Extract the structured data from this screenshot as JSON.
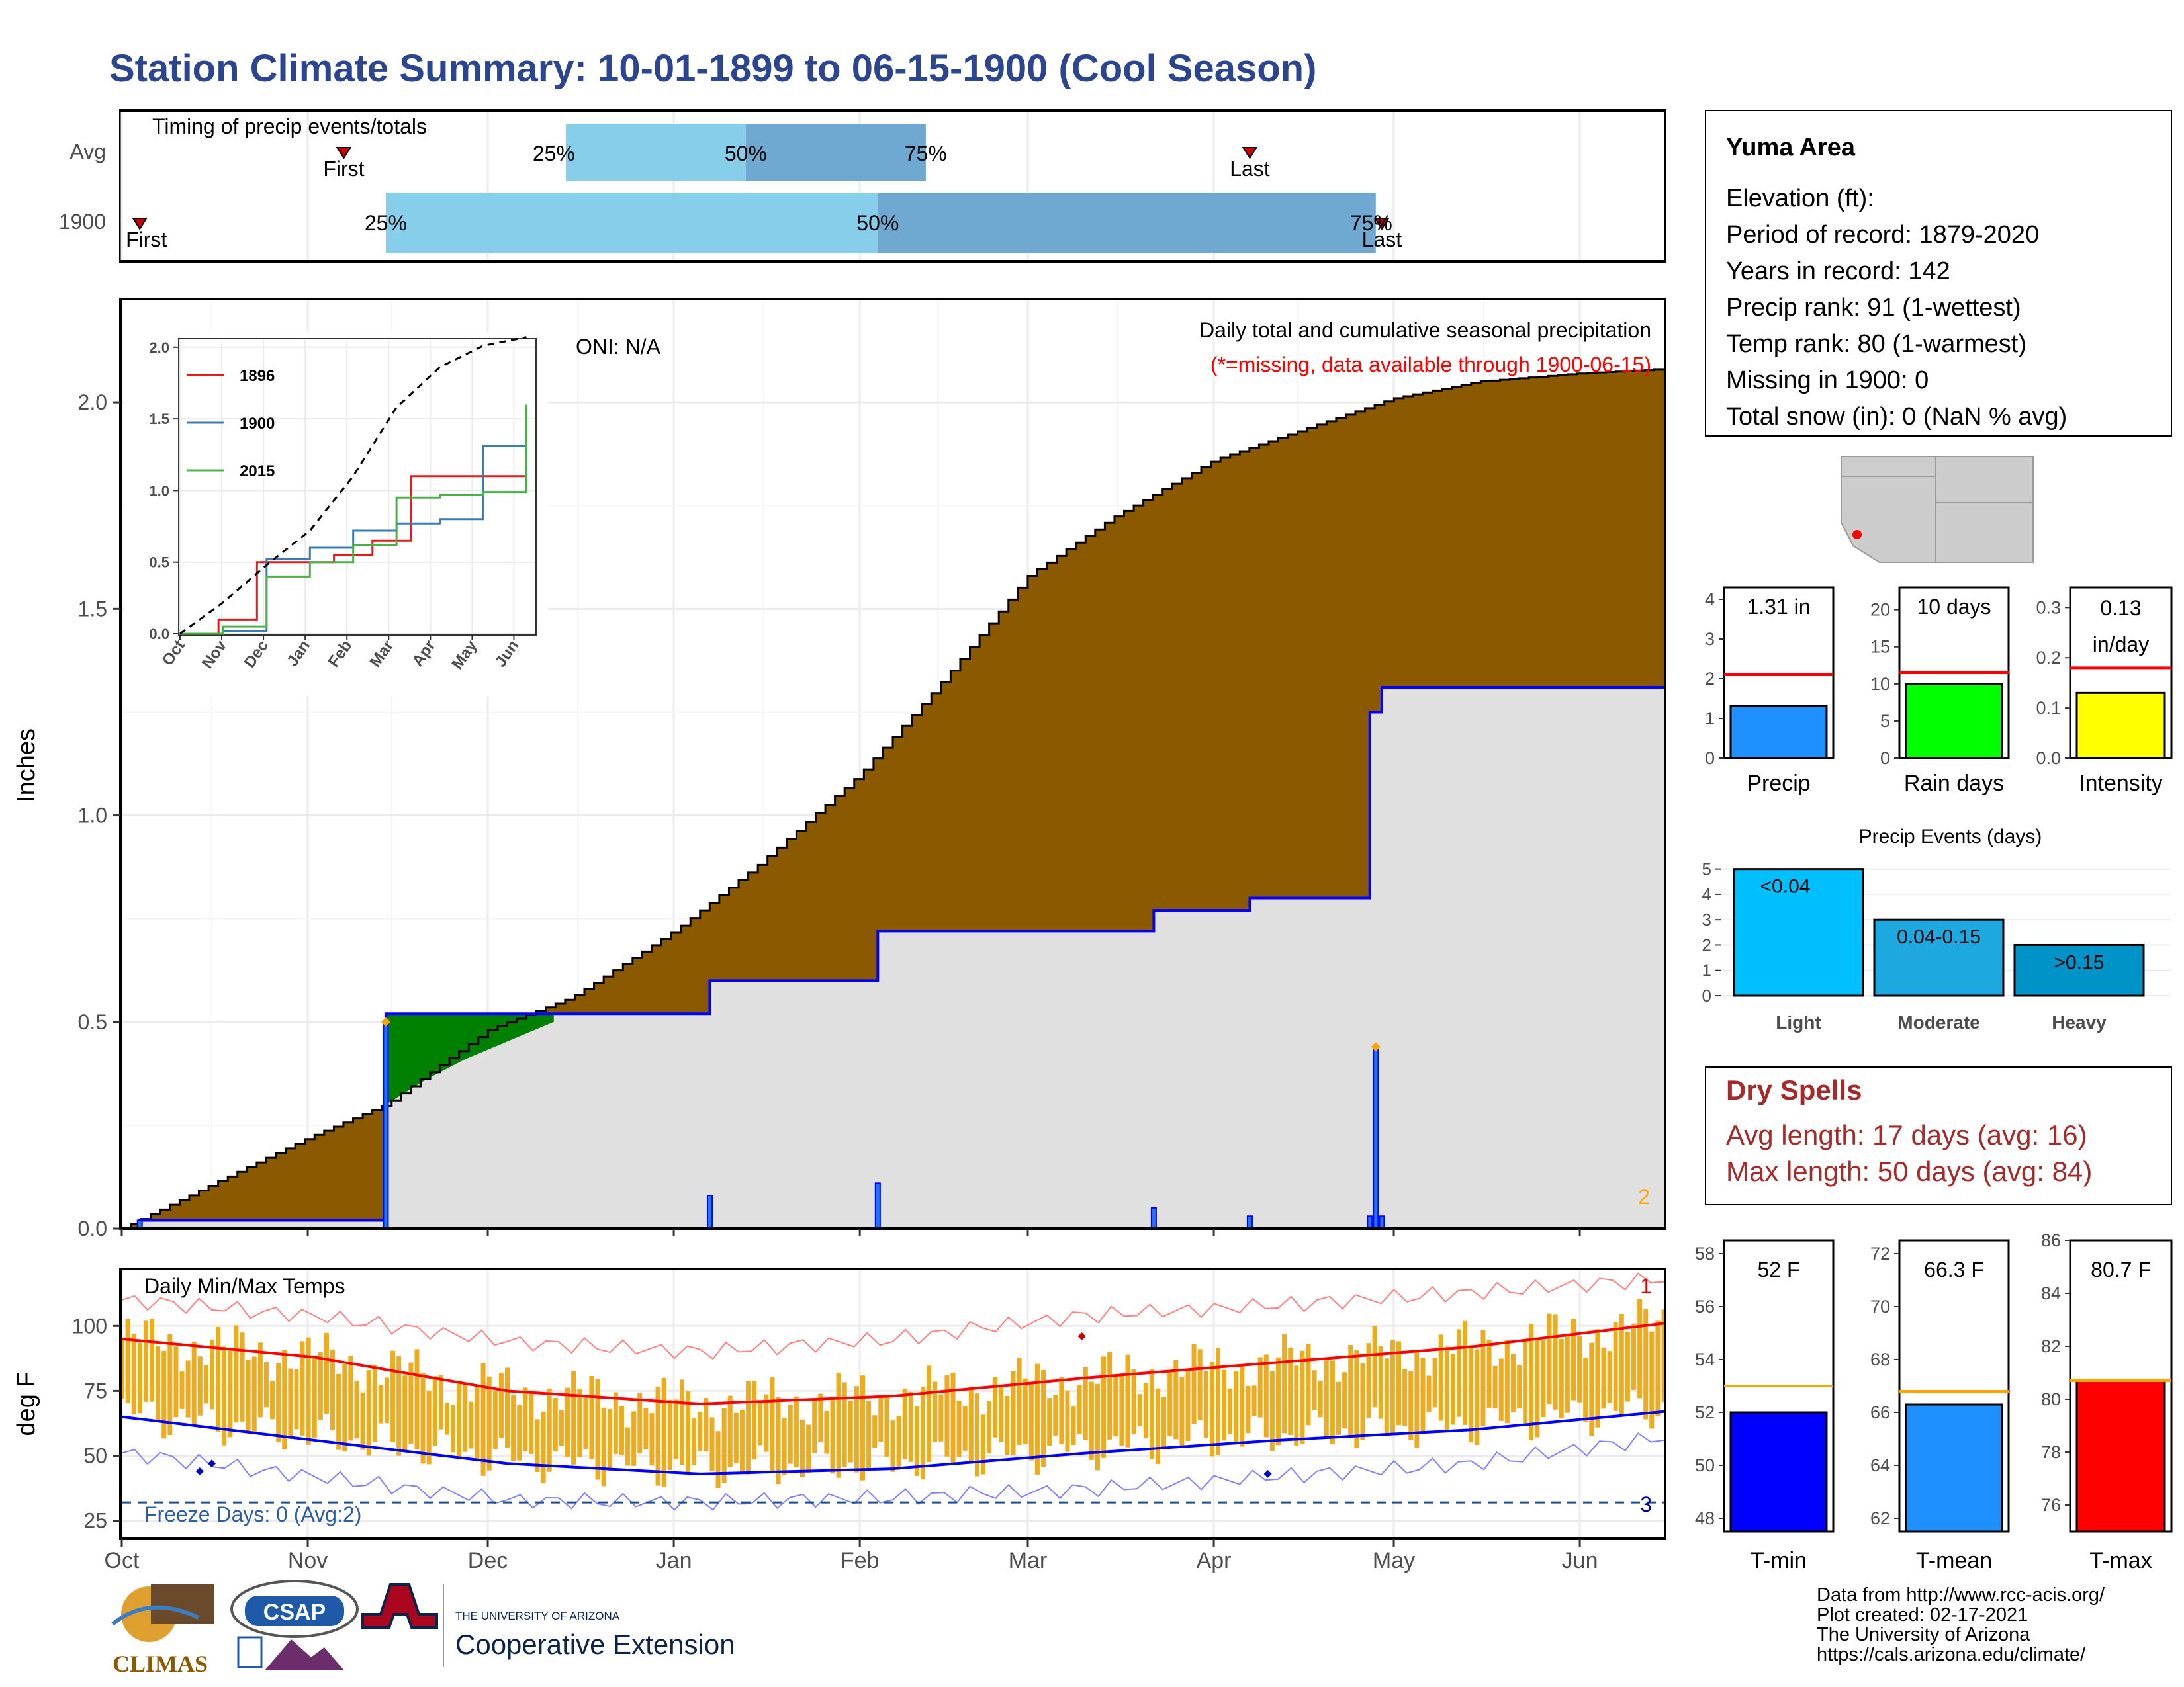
{
  "title": "Station Climate Summary: 10-01-1899 to 06-15-1900 (Cool Season)",
  "colors": {
    "title": "#2b4590",
    "brown": "#8b5a00",
    "green": "#008000",
    "blue": "#0000ff",
    "lightblue": "#87ceeb",
    "midblue": "#6fa8d0",
    "red": "#ff0000",
    "orange": "#ffa500",
    "gold": "#ecac1d",
    "grey": "#e0e0e0"
  },
  "timing": {
    "label": "Timing of precip events/totals",
    "rows": [
      "Avg",
      "1900"
    ],
    "avg": {
      "first": "First",
      "last": "Last",
      "p25": "25%",
      "p50": "50%",
      "p75": "75%"
    },
    "y1900": {
      "first": "First",
      "last": "Last",
      "p25": "25%",
      "p50": "50%",
      "p75": "75%"
    }
  },
  "precip_panel": {
    "ylabel": "Inches",
    "yticks": [
      "0.0",
      "0.5",
      "1.0",
      "1.5",
      "2.0"
    ],
    "oni": "ONI: N/A",
    "note1": "Daily total and cumulative seasonal precipitation",
    "note2": "(*=missing, data available through 1900-06-15)",
    "missing_count": "2"
  },
  "inset": {
    "yticks": [
      "0.0",
      "0.5",
      "1.0",
      "1.5",
      "2.0"
    ],
    "xticks": [
      "Oct",
      "Nov",
      "Dec",
      "Jan",
      "Feb",
      "Mar",
      "Apr",
      "May",
      "Jun"
    ],
    "legend": [
      {
        "name": "1896",
        "color": "#e41a1c"
      },
      {
        "name": "1900",
        "color": "#377eb8"
      },
      {
        "name": "2015",
        "color": "#4daf4a"
      }
    ]
  },
  "temp_panel": {
    "label": "Daily Min/Max Temps",
    "ylabel": "deg F",
    "yticks": [
      "25",
      "50",
      "75",
      "100"
    ],
    "freeze": "Freeze Days: 0 (Avg:2)",
    "count_top": "1",
    "count_bottom": "3"
  },
  "x_months": [
    "Oct",
    "Nov",
    "Dec",
    "Jan",
    "Feb",
    "Mar",
    "Apr",
    "May",
    "Jun"
  ],
  "station": {
    "name": "Yuma Area",
    "lines": [
      "Elevation (ft):",
      "Period of record: 1879-2020",
      "Years in record: 142",
      "Precip rank: 91 (1-wettest)",
      "Temp rank: 80 (1-warmest)",
      "Missing in 1900: 0",
      "Total snow (in): 0 (NaN % avg)"
    ]
  },
  "summary_bars": {
    "precip": {
      "label": "Precip",
      "value_text": "1.31 in",
      "yticks": [
        "0",
        "1",
        "2",
        "3",
        "4"
      ]
    },
    "raindays": {
      "label": "Rain days",
      "value_text": "10 days",
      "yticks": [
        "0",
        "5",
        "10",
        "15",
        "20"
      ]
    },
    "intensity": {
      "label": "Intensity",
      "value_text1": "0.13",
      "value_text2": "in/day",
      "yticks": [
        "0.0",
        "0.1",
        "0.2",
        "0.3"
      ]
    }
  },
  "events": {
    "title": "Precip Events (days)",
    "yticks": [
      "0",
      "1",
      "2",
      "3",
      "4",
      "5"
    ],
    "categories": [
      "Light",
      "Moderate",
      "Heavy"
    ],
    "labels": [
      "<0.04",
      "0.04-0.15",
      ">0.15"
    ]
  },
  "dry_spells": {
    "title": "Dry Spells",
    "avg": "Avg length: 17 days (avg: 16)",
    "max": "Max length: 50 days (avg: 84)"
  },
  "temp_bars": {
    "tmin": {
      "label": "T-min",
      "value_text": "52 F",
      "yticks": [
        "48",
        "50",
        "52",
        "54",
        "56",
        "58"
      ]
    },
    "tmean": {
      "label": "T-mean",
      "value_text": "66.3 F",
      "yticks": [
        "62",
        "64",
        "66",
        "68",
        "70",
        "72"
      ]
    },
    "tmax": {
      "label": "T-max",
      "value_text": "80.7 F",
      "yticks": [
        "76",
        "78",
        "80",
        "82",
        "84",
        "86"
      ]
    }
  },
  "footer": {
    "lines": [
      "Data from http://www.rcc-acis.org/",
      "Plot created: 02-17-2021",
      "The University of Arizona",
      "https://cals.arizona.edu/climate/"
    ],
    "climas": "CLIMAS",
    "csap": "CSAP",
    "ua_small": "THE UNIVERSITY OF ARIZONA",
    "ua_big": "Cooperative Extension"
  },
  "chart_data": [
    {
      "type": "bar",
      "title": "Timing of precip events/totals",
      "categories": [
        "Avg",
        "1900"
      ],
      "series": [
        {
          "name": "25%",
          "values": [
            "1899-12-14",
            "1899-11-14"
          ]
        },
        {
          "name": "50%",
          "values": [
            "1900-01-13",
            "1900-02-04"
          ]
        },
        {
          "name": "75%",
          "values": [
            "1900-02-12",
            "1900-04-28"
          ]
        }
      ],
      "markers": {
        "first": [
          "1899-11-07",
          "1899-10-04"
        ],
        "last": [
          "1900-04-07",
          "1900-04-29"
        ]
      }
    },
    {
      "type": "area",
      "title": "Daily total and cumulative seasonal precipitation",
      "ylabel": "Inches",
      "ylim": [
        0,
        2.25
      ],
      "series": [
        {
          "name": "Avg cumulative",
          "x": [
            "1899-10-01",
            "1899-10-15",
            "1899-11-01",
            "1899-11-14",
            "1899-12-01",
            "1899-12-15",
            "1900-01-01",
            "1900-01-15",
            "1900-02-01",
            "1900-02-15",
            "1900-03-01",
            "1900-03-15",
            "1900-04-01",
            "1900-04-15",
            "1900-05-01",
            "1900-05-15",
            "1900-06-01",
            "1900-06-15"
          ],
          "y": [
            0.0,
            0.1,
            0.22,
            0.3,
            0.48,
            0.56,
            0.72,
            0.88,
            1.1,
            1.33,
            1.58,
            1.72,
            1.86,
            1.93,
            2.01,
            2.05,
            2.07,
            2.08
          ]
        },
        {
          "name": "1900 cumulative",
          "x": [
            "1899-10-01",
            "1899-10-04",
            "1899-11-14",
            "1900-01-07",
            "1900-02-04",
            "1900-03-22",
            "1900-04-07",
            "1900-04-27",
            "1900-04-29",
            "1900-06-15"
          ],
          "y": [
            0.0,
            0.02,
            0.52,
            0.6,
            0.72,
            0.77,
            0.8,
            1.25,
            1.31,
            1.31
          ]
        },
        {
          "name": "1900 daily",
          "x": [
            "1899-10-04",
            "1899-11-14",
            "1900-01-07",
            "1900-02-04",
            "1900-03-22",
            "1900-04-07",
            "1900-04-27",
            "1900-04-28",
            "1900-04-29"
          ],
          "y": [
            0.02,
            0.5,
            0.08,
            0.11,
            0.05,
            0.03,
            0.03,
            0.44,
            0.03
          ]
        }
      ]
    },
    {
      "type": "line",
      "title": "Inset cumulative precipitation",
      "ylim": [
        0,
        2.0
      ],
      "series": [
        {
          "name": "1896",
          "x": [
            "Oct",
            "Nov",
            "Nov",
            "Dec",
            "Jan",
            "Feb",
            "Mar",
            "Apr",
            "May",
            "Jun"
          ],
          "y": [
            0.0,
            0.1,
            0.5,
            0.5,
            0.55,
            0.65,
            1.1,
            1.1,
            1.1,
            1.1
          ]
        },
        {
          "name": "1900",
          "x": [
            "Oct",
            "Nov",
            "Dec",
            "Jan",
            "Feb",
            "Mar",
            "Apr",
            "May",
            "Jun"
          ],
          "y": [
            0.0,
            0.02,
            0.52,
            0.6,
            0.72,
            0.77,
            0.8,
            1.31,
            1.31
          ]
        },
        {
          "name": "2015",
          "x": [
            "Oct",
            "Nov",
            "Dec",
            "Jan",
            "Feb",
            "Mar",
            "Apr",
            "May",
            "Jun"
          ],
          "y": [
            0.0,
            0.05,
            0.4,
            0.5,
            0.62,
            0.95,
            0.97,
            0.99,
            1.6
          ]
        },
        {
          "name": "Avg",
          "x": [
            "Oct",
            "Nov",
            "Dec",
            "Jan",
            "Feb",
            "Mar",
            "Apr",
            "May",
            "Jun"
          ],
          "y": [
            0.0,
            0.22,
            0.48,
            0.72,
            1.1,
            1.58,
            1.86,
            2.01,
            2.07
          ]
        }
      ]
    },
    {
      "type": "line",
      "title": "Daily Min/Max Temps",
      "ylabel": "deg F",
      "ylim": [
        18,
        122
      ],
      "series": [
        {
          "name": "Avg max",
          "x": [
            "Oct",
            "Nov",
            "Dec",
            "Jan",
            "Feb",
            "Mar",
            "Apr",
            "May",
            "Jun"
          ],
          "y": [
            95,
            88,
            75,
            70,
            73,
            80,
            86,
            92,
            101
          ]
        },
        {
          "name": "Avg min",
          "x": [
            "Oct",
            "Nov",
            "Dec",
            "Jan",
            "Feb",
            "Mar",
            "Apr",
            "May",
            "Jun"
          ],
          "y": [
            65,
            56,
            47,
            43,
            45,
            51,
            56,
            60,
            67
          ]
        },
        {
          "name": "Record max",
          "x": [
            "Oct",
            "Nov",
            "Dec",
            "Jan",
            "Feb",
            "Mar",
            "Apr",
            "May",
            "Jun"
          ],
          "y": [
            110,
            104,
            94,
            90,
            95,
            104,
            108,
            113,
            118
          ]
        },
        {
          "name": "Record min",
          "x": [
            "Oct",
            "Nov",
            "Dec",
            "Jan",
            "Feb",
            "Mar",
            "Apr",
            "May",
            "Jun"
          ],
          "y": [
            51,
            42,
            33,
            32,
            34,
            37,
            42,
            47,
            57
          ]
        }
      ]
    },
    {
      "type": "bar",
      "categories": [
        "Precip"
      ],
      "values": [
        1.31
      ],
      "average": 2.1,
      "ylim": [
        0,
        4.3
      ]
    },
    {
      "type": "bar",
      "categories": [
        "Rain days"
      ],
      "values": [
        10
      ],
      "average": 11.5,
      "ylim": [
        0,
        23
      ]
    },
    {
      "type": "bar",
      "categories": [
        "Intensity"
      ],
      "values": [
        0.13
      ],
      "average": 0.18,
      "ylim": [
        0,
        0.34
      ]
    },
    {
      "type": "bar",
      "title": "Precip Events (days)",
      "categories": [
        "Light",
        "Moderate",
        "Heavy"
      ],
      "values": [
        5,
        3,
        2
      ],
      "ylim": [
        0,
        5.2
      ]
    },
    {
      "type": "bar",
      "categories": [
        "T-min"
      ],
      "values": [
        52
      ],
      "average": 53,
      "ylim": [
        47.5,
        58.5
      ]
    },
    {
      "type": "bar",
      "categories": [
        "T-mean"
      ],
      "values": [
        66.3
      ],
      "average": 66.8,
      "ylim": [
        61.5,
        72.5
      ]
    },
    {
      "type": "bar",
      "categories": [
        "T-max"
      ],
      "values": [
        80.7
      ],
      "average": 80.7,
      "ylim": [
        75,
        86
      ]
    }
  ]
}
